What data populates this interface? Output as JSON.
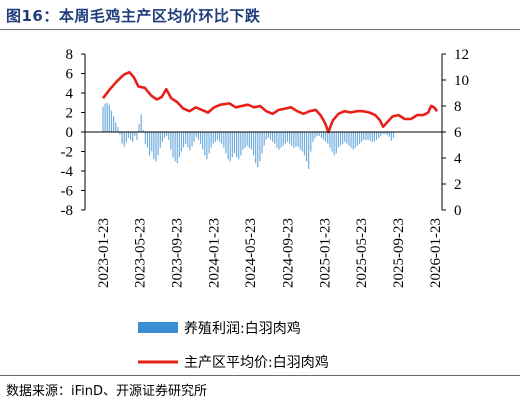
{
  "figure": {
    "title": "图16：本周毛鸡主产区均价环比下跌",
    "source": "数据来源：iFinD、开源证券研究所"
  },
  "chart_data": {
    "type": "bar+line",
    "x_tick_labels": [
      "2023-01-23",
      "2023-05-23",
      "2023-09-23",
      "2024-01-23",
      "2024-05-23",
      "2024-09-23",
      "2025-01-23",
      "2025-05-23",
      "2025-09-23",
      "2026-01-23"
    ],
    "left_axis": {
      "ylim": [
        -8,
        8
      ],
      "ticks": [
        8,
        6,
        4,
        2,
        0,
        -2,
        -4,
        -6,
        -8
      ]
    },
    "right_axis": {
      "ylim": [
        0,
        12
      ],
      "ticks": [
        12,
        10,
        8,
        6,
        4,
        2,
        0
      ]
    },
    "grid": false,
    "legend_placement": "bottom-center",
    "series": [
      {
        "name": "养殖利润:白羽肉鸡",
        "type": "bar",
        "axis": "left",
        "color": "#3a8fd4",
        "start": "2023-01-23",
        "step_days": 7,
        "values": [
          2.6,
          2.9,
          3.0,
          2.8,
          2.2,
          1.6,
          1.0,
          0.5,
          -0.3,
          -1.2,
          -1.5,
          -1.0,
          -0.6,
          -0.8,
          -1.0,
          -0.4,
          -0.8,
          0.8,
          1.8,
          0.2,
          -1.2,
          -1.6,
          -2.4,
          -2.0,
          -2.8,
          -3.0,
          -2.4,
          -1.6,
          -1.0,
          -0.6,
          -0.4,
          -0.8,
          -1.8,
          -2.6,
          -3.0,
          -3.2,
          -2.6,
          -2.0,
          -1.6,
          -1.2,
          -1.6,
          -1.9,
          -1.5,
          -1.0,
          -0.5,
          -0.8,
          -1.2,
          -1.8,
          -2.4,
          -2.8,
          -2.2,
          -1.6,
          -1.2,
          -1.0,
          -0.8,
          -1.0,
          -1.2,
          -1.6,
          -2.2,
          -2.8,
          -3.0,
          -2.6,
          -2.2,
          -2.6,
          -2.8,
          -2.4,
          -1.8,
          -1.6,
          -1.4,
          -1.6,
          -1.8,
          -2.4,
          -3.2,
          -3.6,
          -3.0,
          -2.2,
          -1.4,
          -0.8,
          -0.6,
          -0.8,
          -1.0,
          -1.2,
          -1.6,
          -1.8,
          -1.6,
          -1.4,
          -1.2,
          -1.0,
          -1.2,
          -1.4,
          -1.6,
          -1.5,
          -1.5,
          -1.8,
          -2.0,
          -2.4,
          -3.0,
          -3.8,
          -2.0,
          -1.0,
          -0.6,
          -0.4,
          -0.4,
          -0.6,
          -0.8,
          -1.0,
          -1.2,
          -1.6,
          -2.0,
          -2.4,
          -2.2,
          -1.6,
          -1.4,
          -1.2,
          -1.0,
          -1.2,
          -1.4,
          -1.6,
          -1.8,
          -1.6,
          -1.4,
          -1.2,
          -1.0,
          -0.8,
          -0.8,
          -0.8,
          -0.9,
          -1.0,
          -1.0,
          -0.8,
          -0.6,
          -0.4,
          -0.2,
          -0.2,
          -0.3,
          -0.5,
          -0.9,
          -0.6
        ]
      },
      {
        "name": "主产区平均价:白羽肉鸡",
        "type": "line",
        "axis": "right",
        "color": "#e8201a",
        "points": [
          [
            "2023-01-23",
            8.6
          ],
          [
            "2023-02-15",
            9.3
          ],
          [
            "2023-03-10",
            9.9
          ],
          [
            "2023-04-01",
            10.4
          ],
          [
            "2023-04-20",
            10.6
          ],
          [
            "2023-05-05",
            10.2
          ],
          [
            "2023-05-20",
            9.5
          ],
          [
            "2023-06-10",
            9.4
          ],
          [
            "2023-07-01",
            8.8
          ],
          [
            "2023-07-20",
            8.5
          ],
          [
            "2023-08-05",
            8.7
          ],
          [
            "2023-08-20",
            9.3
          ],
          [
            "2023-09-05",
            8.6
          ],
          [
            "2023-09-25",
            8.3
          ],
          [
            "2023-10-15",
            7.8
          ],
          [
            "2023-11-05",
            7.6
          ],
          [
            "2023-11-25",
            7.9
          ],
          [
            "2023-12-15",
            7.7
          ],
          [
            "2024-01-05",
            7.5
          ],
          [
            "2024-01-25",
            7.9
          ],
          [
            "2024-02-15",
            8.1
          ],
          [
            "2024-03-15",
            8.2
          ],
          [
            "2024-04-05",
            7.9
          ],
          [
            "2024-04-25",
            8.0
          ],
          [
            "2024-05-15",
            8.1
          ],
          [
            "2024-06-05",
            7.9
          ],
          [
            "2024-06-25",
            8.0
          ],
          [
            "2024-07-15",
            7.6
          ],
          [
            "2024-08-05",
            7.4
          ],
          [
            "2024-08-25",
            7.7
          ],
          [
            "2024-09-15",
            7.8
          ],
          [
            "2024-10-05",
            7.9
          ],
          [
            "2024-10-25",
            7.6
          ],
          [
            "2024-11-15",
            7.4
          ],
          [
            "2024-12-05",
            7.6
          ],
          [
            "2024-12-25",
            7.7
          ],
          [
            "2025-01-10",
            7.3
          ],
          [
            "2025-01-25",
            6.7
          ],
          [
            "2025-02-05",
            6.0
          ],
          [
            "2025-02-20",
            6.9
          ],
          [
            "2025-03-10",
            7.4
          ],
          [
            "2025-03-30",
            7.6
          ],
          [
            "2025-04-20",
            7.5
          ],
          [
            "2025-05-10",
            7.6
          ],
          [
            "2025-05-30",
            7.6
          ],
          [
            "2025-06-20",
            7.5
          ],
          [
            "2025-07-10",
            7.3
          ],
          [
            "2025-07-25",
            6.9
          ],
          [
            "2025-08-05",
            6.4
          ],
          [
            "2025-08-20",
            6.8
          ],
          [
            "2025-09-05",
            7.2
          ],
          [
            "2025-09-25",
            7.3
          ],
          [
            "2025-10-15",
            7.0
          ],
          [
            "2025-11-05",
            7.0
          ],
          [
            "2025-11-25",
            7.3
          ],
          [
            "2025-12-15",
            7.3
          ],
          [
            "2026-01-01",
            7.5
          ],
          [
            "2026-01-10",
            8.0
          ],
          [
            "2026-01-20",
            7.9
          ],
          [
            "2026-01-30",
            7.6
          ]
        ]
      }
    ]
  }
}
